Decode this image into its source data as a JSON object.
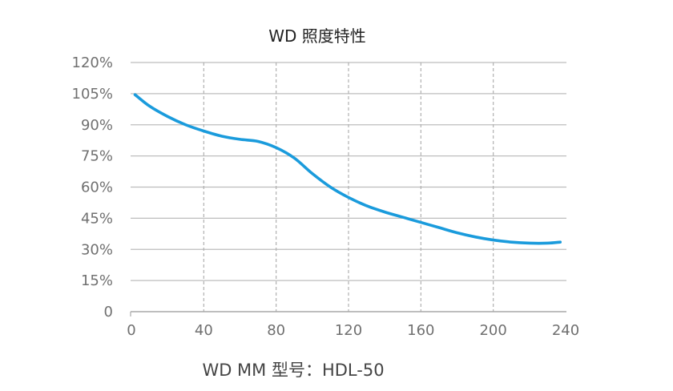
{
  "chart_data": {
    "type": "line",
    "title": "WD 照度特性",
    "xlabel": "WD MM 型号：HDL-50",
    "ylabel": "",
    "x_ticks": [
      "0",
      "40",
      "80",
      "120",
      "160",
      "200",
      "240"
    ],
    "y_ticks": [
      "0",
      "15%",
      "30%",
      "45%",
      "60%",
      "75%",
      "90%",
      "105%",
      "120%"
    ],
    "xlim": [
      0,
      240
    ],
    "ylim": [
      0,
      120
    ],
    "grid": {
      "horizontal": "solid",
      "vertical": "dashed"
    },
    "series": [
      {
        "color": "#1a9bdc",
        "x": [
          2,
          10,
          20,
          30,
          40,
          50,
          60,
          70,
          80,
          90,
          100,
          110,
          120,
          130,
          140,
          150,
          160,
          170,
          180,
          190,
          200,
          210,
          220,
          230,
          237
        ],
        "y": [
          104.5,
          99,
          94,
          90,
          87,
          84.5,
          83,
          82,
          79,
          74,
          66.5,
          60,
          55,
          51,
          48,
          45.5,
          43,
          40.5,
          38,
          36,
          34.5,
          33.5,
          33,
          33,
          33.5
        ]
      }
    ]
  }
}
